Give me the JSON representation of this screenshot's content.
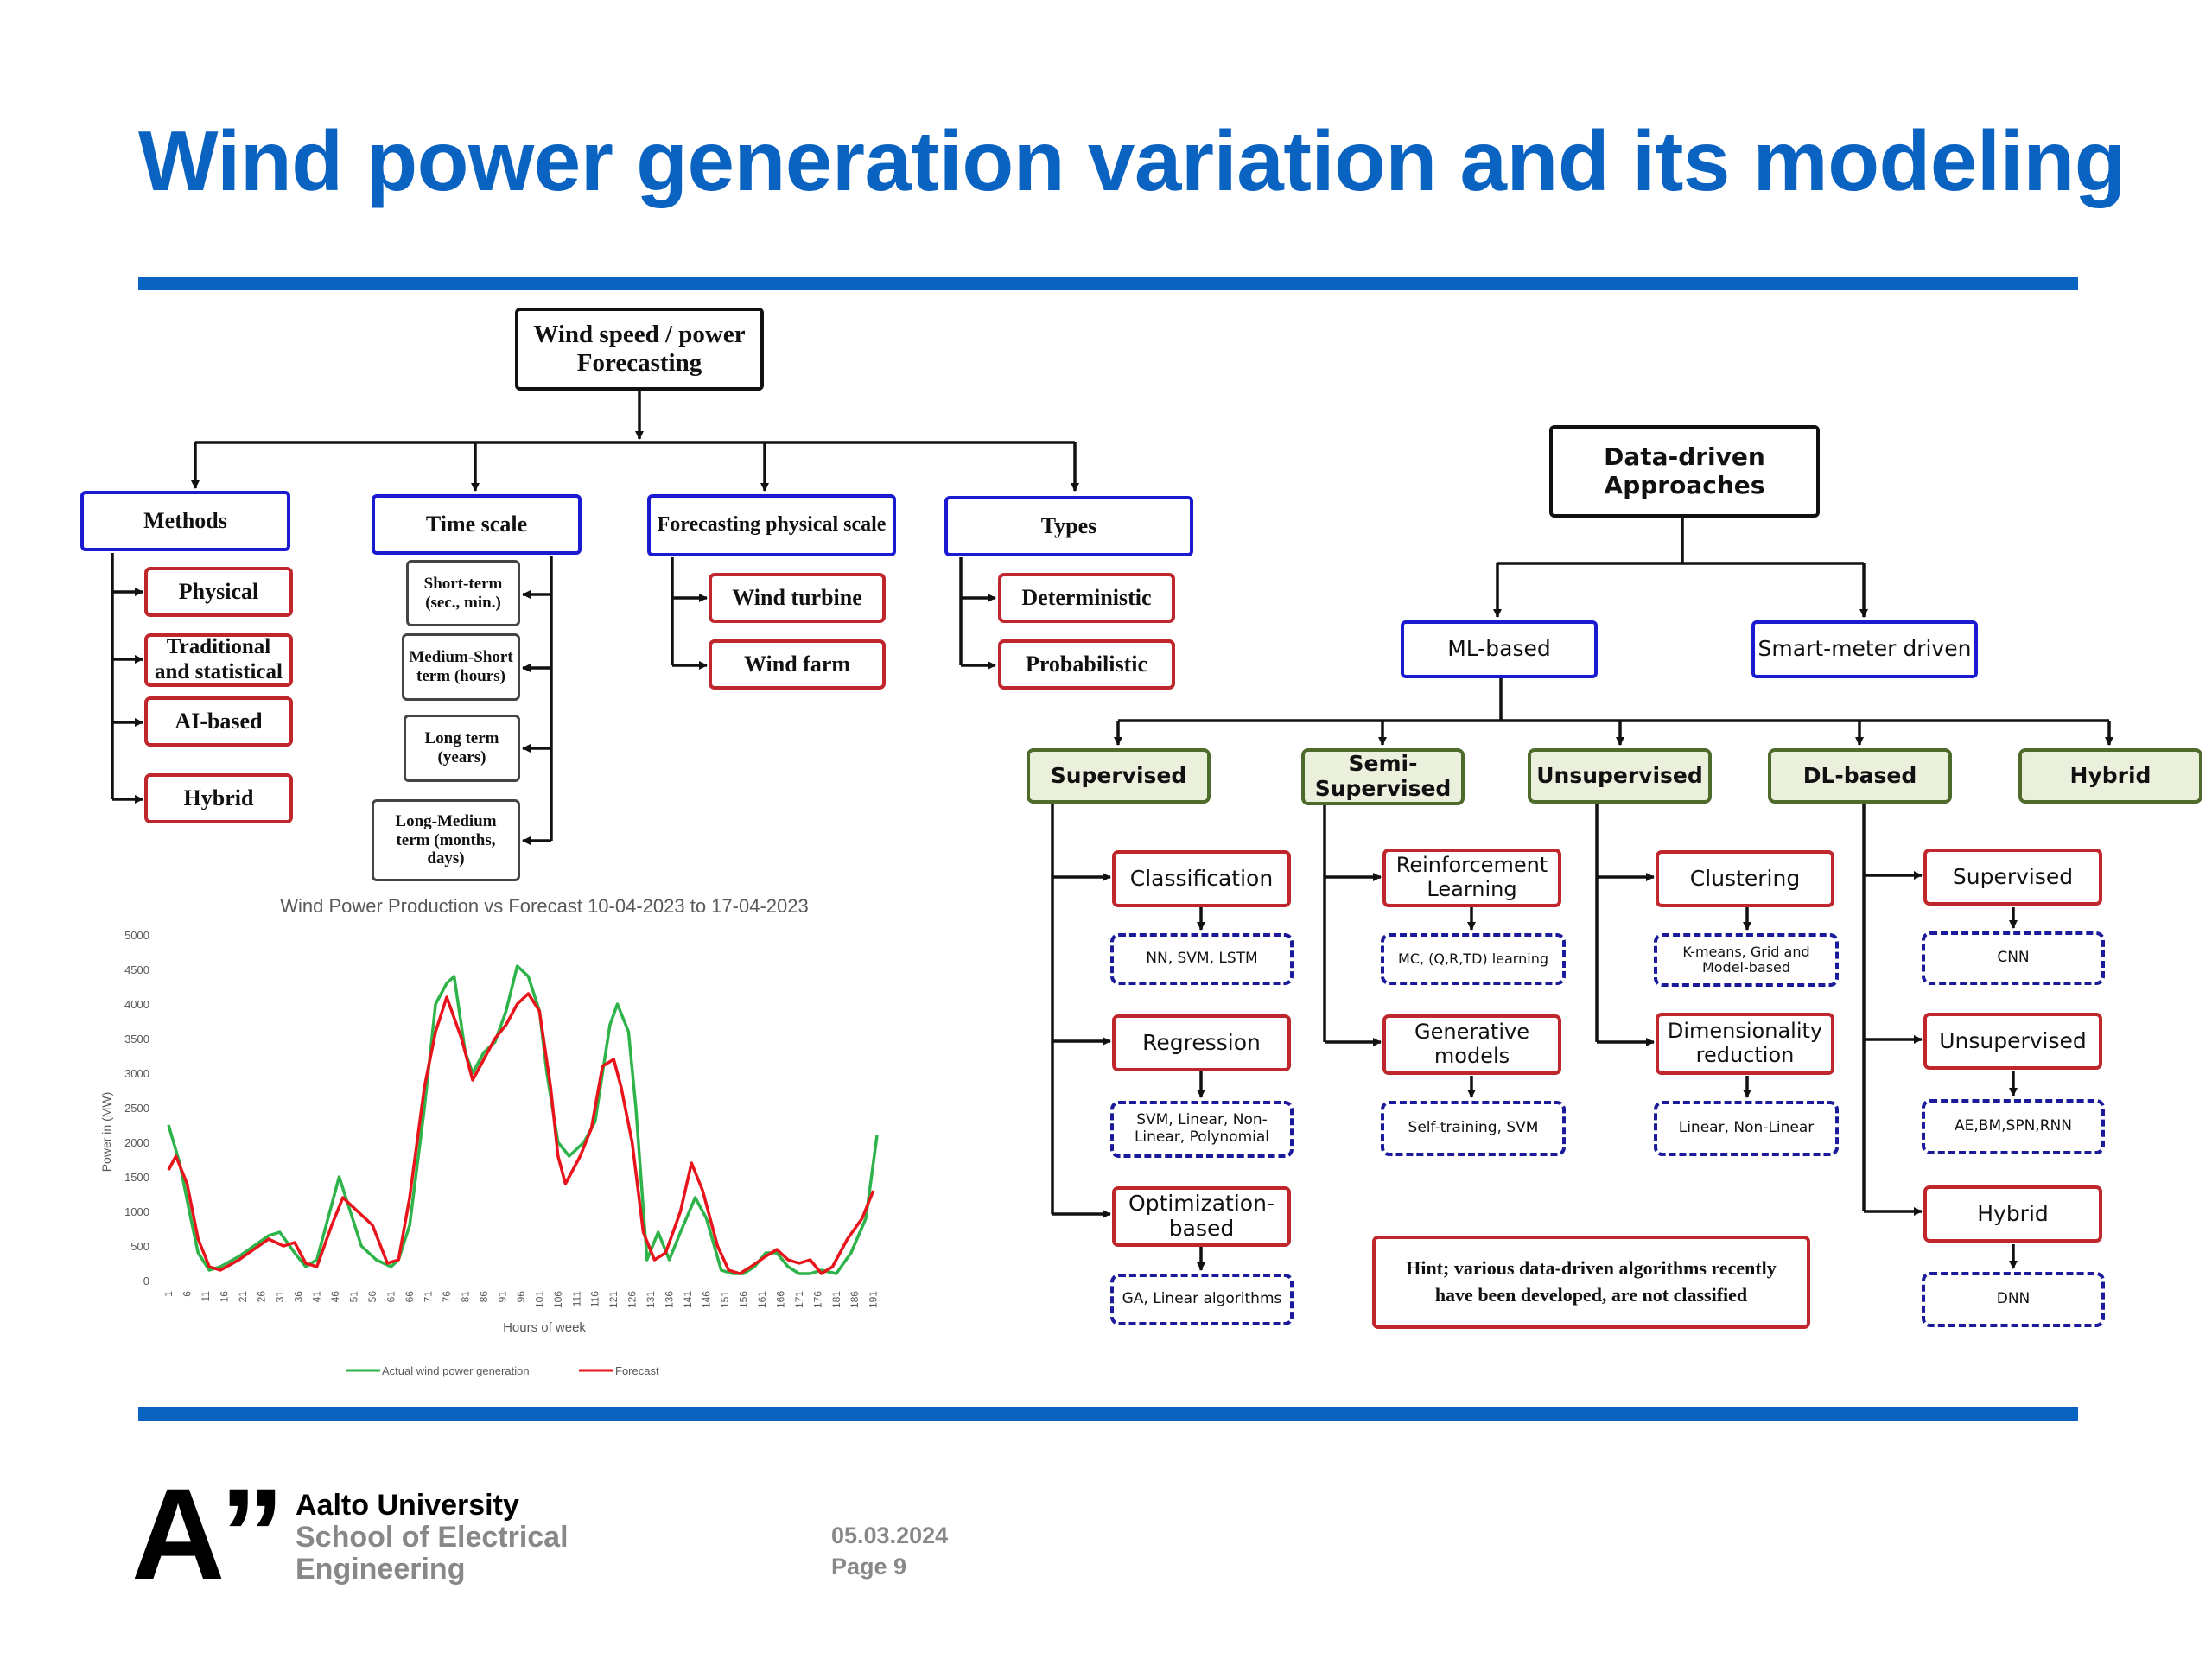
{
  "slide": {
    "title": "Wind power generation variation and its modeling",
    "accent_color": "#0b63c1"
  },
  "forecast_tree": {
    "root": "Wind speed / power Forecasting",
    "categories": [
      {
        "label": "Methods",
        "items": [
          "Physical",
          "Traditional and statistical",
          "AI-based",
          "Hybrid"
        ]
      },
      {
        "label": "Time scale",
        "items": [
          "Short-term (sec., min.)",
          "Medium-Short term (hours)",
          "Long term (years)",
          "Long-Medium term (months, days)"
        ]
      },
      {
        "label": "Forecasting physical scale",
        "items": [
          "Wind turbine",
          "Wind farm"
        ]
      },
      {
        "label": "Types",
        "items": [
          "Deterministic",
          "Probabilistic"
        ]
      }
    ]
  },
  "data_driven_tree": {
    "root": "Data-driven Approaches",
    "level1": [
      "ML-based",
      "Smart-meter driven"
    ],
    "level2": [
      "Supervised",
      "Semi-Supervised",
      "Unsupervised",
      "DL-based",
      "Hybrid"
    ],
    "branches": [
      {
        "methods": [
          {
            "label": "Classification",
            "examples": "NN, SVM, LSTM"
          },
          {
            "label": "Regression",
            "examples": "SVM, Linear, Non-Linear, Polynomial"
          },
          {
            "label": "Optimization-based",
            "examples": "GA, Linear algorithms"
          }
        ]
      },
      {
        "methods": [
          {
            "label": "Reinforcement Learning",
            "examples": "MC, (Q,R,TD) learning"
          },
          {
            "label": "Generative models",
            "examples": "Self-training, SVM"
          }
        ]
      },
      {
        "methods": [
          {
            "label": "Clustering",
            "examples": "K-means, Grid and Model-based"
          },
          {
            "label": "Dimensionality reduction",
            "examples": "Linear, Non-Linear"
          }
        ]
      },
      {
        "methods": [
          {
            "label": "Supervised",
            "examples": "CNN"
          },
          {
            "label": "Unsupervised",
            "examples": "AE,BM,SPN,RNN"
          },
          {
            "label": "Hybrid",
            "examples": "DNN"
          }
        ]
      }
    ],
    "hint": "Hint; various data-driven algorithms recently have been developed, are not classified"
  },
  "chart_data": {
    "type": "line",
    "title": "Wind Power Production vs Forecast 10-04-2023 to 17-04-2023",
    "xlabel": "Hours of week",
    "ylabel": "Power in (MW)",
    "ylim": [
      0,
      5000
    ],
    "yticks": [
      0,
      500,
      1000,
      1500,
      2000,
      2500,
      3000,
      3500,
      4000,
      4500,
      5000
    ],
    "xlim": [
      1,
      192
    ],
    "xticks": [
      1,
      6,
      11,
      16,
      21,
      26,
      31,
      36,
      41,
      46,
      51,
      56,
      61,
      66,
      71,
      76,
      81,
      86,
      91,
      96,
      101,
      106,
      111,
      116,
      121,
      126,
      131,
      136,
      141,
      146,
      151,
      156,
      161,
      166,
      171,
      176,
      181,
      186,
      191
    ],
    "legend_position": "bottom",
    "grid": false,
    "series": [
      {
        "name": "Actual wind power generation",
        "color": "#2db34a",
        "x": [
          1,
          4,
          7,
          9,
          12,
          15,
          20,
          24,
          28,
          31,
          35,
          38,
          41,
          45,
          47,
          50,
          53,
          57,
          61,
          63,
          66,
          70,
          73,
          76,
          78,
          81,
          83,
          86,
          89,
          92,
          95,
          98,
          101,
          103,
          106,
          109,
          113,
          116,
          118,
          120,
          122,
          125,
          127,
          130,
          133,
          136,
          139,
          143,
          146,
          150,
          153,
          156,
          159,
          162,
          165,
          168,
          171,
          174,
          177,
          181,
          185,
          189,
          192
        ],
        "y": [
          2250,
          1700,
          900,
          400,
          150,
          200,
          350,
          500,
          650,
          700,
          400,
          200,
          300,
          1100,
          1500,
          1000,
          500,
          300,
          200,
          300,
          800,
          2500,
          4000,
          4300,
          4400,
          3300,
          3000,
          3300,
          3450,
          3900,
          4550,
          4400,
          3900,
          3000,
          2000,
          1800,
          2000,
          2300,
          3000,
          3700,
          4000,
          3600,
          2500,
          300,
          700,
          300,
          700,
          1200,
          900,
          150,
          100,
          100,
          200,
          400,
          400,
          200,
          100,
          100,
          150,
          100,
          400,
          900,
          2100
        ]
      },
      {
        "name": "Forecast",
        "color": "#e8141c",
        "x": [
          1,
          3,
          6,
          9,
          12,
          15,
          20,
          24,
          28,
          32,
          35,
          38,
          41,
          45,
          48,
          52,
          56,
          60,
          63,
          66,
          70,
          73,
          76,
          80,
          83,
          86,
          89,
          92,
          95,
          98,
          101,
          104,
          106,
          108,
          112,
          115,
          118,
          121,
          123,
          126,
          129,
          132,
          135,
          139,
          142,
          145,
          149,
          152,
          155,
          158,
          162,
          165,
          168,
          171,
          174,
          177,
          180,
          184,
          188,
          191
        ],
        "y": [
          1600,
          1800,
          1400,
          600,
          200,
          150,
          300,
          450,
          600,
          500,
          550,
          250,
          200,
          800,
          1200,
          1000,
          800,
          250,
          300,
          1200,
          2800,
          3600,
          4100,
          3500,
          2900,
          3200,
          3500,
          3700,
          4000,
          4150,
          3900,
          2800,
          1800,
          1400,
          1800,
          2200,
          3100,
          3200,
          2800,
          2000,
          700,
          300,
          400,
          1000,
          1700,
          1300,
          500,
          150,
          100,
          200,
          350,
          450,
          300,
          250,
          300,
          100,
          200,
          600,
          900,
          1300
        ]
      }
    ]
  },
  "footer": {
    "logo_mark": "A”",
    "university": "Aalto University",
    "school_line1": "School of Electrical",
    "school_line2": "Engineering",
    "date": "05.03.2024",
    "page": "Page 9"
  }
}
